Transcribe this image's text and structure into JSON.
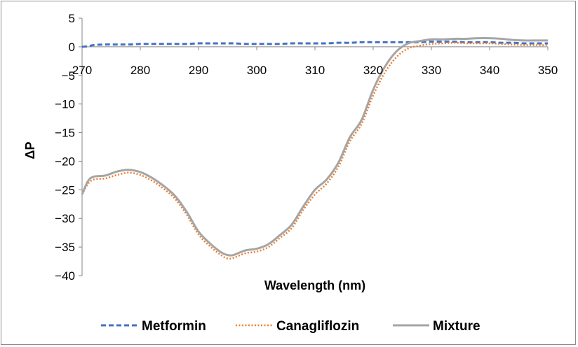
{
  "chart_data": {
    "type": "line",
    "title": "",
    "xlabel": "Wavelength (nm)",
    "ylabel": "ΔP",
    "xlim": [
      270,
      350
    ],
    "ylim": [
      -40,
      5
    ],
    "xticks": [
      270,
      280,
      290,
      300,
      310,
      320,
      330,
      340,
      350
    ],
    "yticks": [
      5,
      0,
      -5,
      -10,
      -15,
      -20,
      -25,
      -30,
      -35,
      -40
    ],
    "ytick_labels": [
      "5",
      "0",
      "−5",
      "−10",
      "−15",
      "−20",
      "−25",
      "−30",
      "−35",
      "−40"
    ],
    "grid": false,
    "legend_position": "bottom",
    "x": [
      270,
      271,
      272,
      274,
      276,
      278,
      280,
      282,
      284,
      286,
      288,
      290,
      292,
      294,
      295,
      296,
      298,
      300,
      302,
      304,
      306,
      308,
      310,
      312,
      314,
      316,
      318,
      320,
      322,
      324,
      326,
      328,
      330,
      332,
      334,
      336,
      338,
      340,
      342,
      344,
      346,
      348,
      350
    ],
    "series": [
      {
        "name": "Metformin",
        "color": "#4472c4",
        "style": "dashed",
        "values": [
          0.0,
          0.1,
          0.3,
          0.4,
          0.4,
          0.4,
          0.5,
          0.5,
          0.5,
          0.5,
          0.5,
          0.6,
          0.6,
          0.6,
          0.6,
          0.6,
          0.5,
          0.5,
          0.5,
          0.5,
          0.6,
          0.6,
          0.6,
          0.6,
          0.7,
          0.7,
          0.8,
          0.8,
          0.8,
          0.8,
          0.8,
          0.8,
          0.9,
          0.9,
          0.9,
          0.8,
          0.8,
          0.8,
          0.7,
          0.7,
          0.6,
          0.6,
          0.6
        ]
      },
      {
        "name": "Canagliflozin",
        "color": "#ed7d31",
        "style": "dotted",
        "values": [
          -25.8,
          -24.0,
          -23.2,
          -23.0,
          -22.4,
          -22.0,
          -22.4,
          -23.4,
          -24.8,
          -26.6,
          -29.4,
          -32.8,
          -34.9,
          -36.5,
          -37.0,
          -36.9,
          -36.1,
          -35.8,
          -35.0,
          -33.4,
          -31.7,
          -28.5,
          -25.8,
          -23.9,
          -21.0,
          -16.5,
          -13.5,
          -8.5,
          -4.5,
          -1.8,
          -0.3,
          0.2,
          0.5,
          0.6,
          0.7,
          0.6,
          0.6,
          0.6,
          0.5,
          0.4,
          0.3,
          0.3,
          0.3
        ]
      },
      {
        "name": "Mixture",
        "color": "#a5a5a5",
        "style": "solid",
        "values": [
          -25.8,
          -23.5,
          -22.7,
          -22.5,
          -21.8,
          -21.5,
          -21.9,
          -22.9,
          -24.3,
          -26.1,
          -28.9,
          -32.3,
          -34.4,
          -36.0,
          -36.4,
          -36.4,
          -35.6,
          -35.3,
          -34.5,
          -32.9,
          -31.1,
          -27.9,
          -25.0,
          -23.2,
          -20.3,
          -15.8,
          -12.8,
          -7.5,
          -3.5,
          -0.8,
          0.6,
          1.0,
          1.3,
          1.3,
          1.4,
          1.4,
          1.5,
          1.5,
          1.4,
          1.2,
          1.1,
          1.1,
          1.1
        ]
      }
    ]
  }
}
